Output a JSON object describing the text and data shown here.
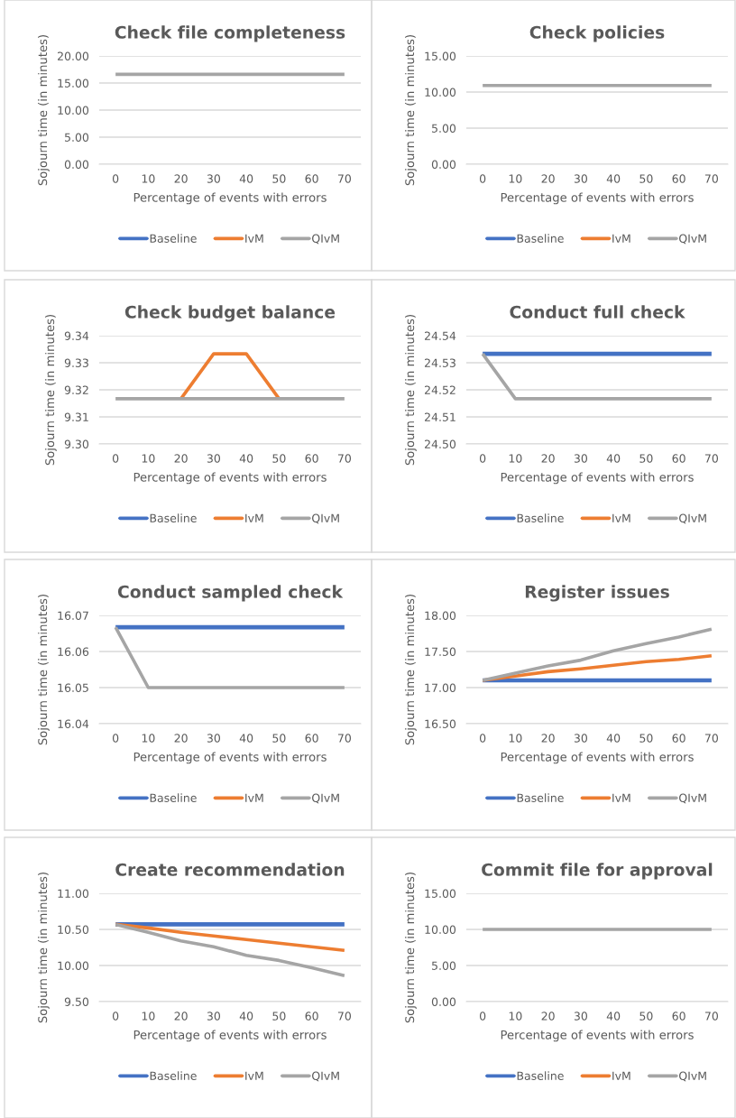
{
  "chart_data": [
    {
      "type": "line",
      "title": "Check file completeness",
      "xlabel": "Percentage of events with errors",
      "ylabel": "Sojourn time (in minutes)",
      "categories": [
        "0",
        "10",
        "20",
        "30",
        "40",
        "50",
        "60",
        "70"
      ],
      "series": [
        {
          "name": "Baseline",
          "color": "#4472c4",
          "values": [
            null,
            null,
            null,
            null,
            null,
            null,
            null,
            null
          ]
        },
        {
          "name": "IvM",
          "color": "#ed7d31",
          "values": [
            null,
            null,
            null,
            null,
            null,
            null,
            null,
            null
          ]
        },
        {
          "name": "QIvM",
          "color": "#a5a5a5",
          "values": [
            16.6,
            16.6,
            16.6,
            16.6,
            16.6,
            16.6,
            16.6,
            16.6
          ]
        }
      ],
      "ylim": [
        0,
        20
      ],
      "yticks": [
        {
          "value": 0,
          "label": "0.00"
        },
        {
          "value": 5,
          "label": "5.00"
        },
        {
          "value": 10,
          "label": "10.00"
        },
        {
          "value": 15,
          "label": "15.00"
        },
        {
          "value": 20,
          "label": "20.00"
        }
      ],
      "grid": "y",
      "legend": "bottom"
    },
    {
      "type": "line",
      "title": "Check policies",
      "xlabel": "Percentage of events with errors",
      "ylabel": "Sojourn time (in minutes)",
      "categories": [
        "0",
        "10",
        "20",
        "30",
        "40",
        "50",
        "60",
        "70"
      ],
      "series": [
        {
          "name": "Baseline",
          "color": "#4472c4",
          "values": [
            null,
            null,
            null,
            null,
            null,
            null,
            null,
            null
          ]
        },
        {
          "name": "IvM",
          "color": "#ed7d31",
          "values": [
            null,
            null,
            null,
            null,
            null,
            null,
            null,
            null
          ]
        },
        {
          "name": "QIvM",
          "color": "#a5a5a5",
          "values": [
            10.9,
            10.9,
            10.9,
            10.9,
            10.9,
            10.9,
            10.9,
            10.9
          ]
        }
      ],
      "ylim": [
        0,
        15
      ],
      "yticks": [
        {
          "value": 0,
          "label": "0.00"
        },
        {
          "value": 5,
          "label": "5.00"
        },
        {
          "value": 10,
          "label": "10.00"
        },
        {
          "value": 15,
          "label": "15.00"
        }
      ],
      "grid": "y",
      "legend": "bottom"
    },
    {
      "type": "line",
      "title": "Check budget balance",
      "xlabel": "Percentage of events with errors",
      "ylabel": "Sojourn time (in minutes)",
      "categories": [
        "0",
        "10",
        "20",
        "30",
        "40",
        "50",
        "60",
        "70"
      ],
      "series": [
        {
          "name": "Baseline",
          "color": "#4472c4",
          "values": [
            null,
            null,
            null,
            null,
            null,
            null,
            null,
            null
          ]
        },
        {
          "name": "IvM",
          "color": "#ed7d31",
          "values": [
            null,
            null,
            9.3167,
            9.3333,
            9.3333,
            9.3167,
            null,
            null
          ]
        },
        {
          "name": "QIvM",
          "color": "#a5a5a5",
          "values": [
            9.3167,
            9.3167,
            9.3167,
            9.3167,
            9.3167,
            9.3167,
            9.3167,
            9.3167
          ]
        }
      ],
      "ylim": [
        9.3,
        9.34
      ],
      "yticks": [
        {
          "value": 9.3,
          "label": "9.30"
        },
        {
          "value": 9.31,
          "label": "9.31"
        },
        {
          "value": 9.32,
          "label": "9.32"
        },
        {
          "value": 9.33,
          "label": "9.33"
        },
        {
          "value": 9.34,
          "label": "9.34"
        }
      ],
      "grid": "y",
      "legend": "bottom"
    },
    {
      "type": "line",
      "title": "Conduct full check",
      "xlabel": "Percentage of events with errors",
      "ylabel": "Sojourn time (in minutes)",
      "categories": [
        "0",
        "10",
        "20",
        "30",
        "40",
        "50",
        "60",
        "70"
      ],
      "series": [
        {
          "name": "Baseline",
          "color": "#4472c4",
          "values": [
            24.5333,
            24.5333,
            24.5333,
            24.5333,
            24.5333,
            24.5333,
            24.5333,
            24.5333
          ]
        },
        {
          "name": "IvM",
          "color": "#ed7d31",
          "values": [
            null,
            null,
            null,
            null,
            null,
            null,
            null,
            null
          ]
        },
        {
          "name": "QIvM",
          "color": "#a5a5a5",
          "values": [
            24.5333,
            24.5167,
            24.5167,
            24.5167,
            24.5167,
            24.5167,
            24.5167,
            24.5167
          ]
        }
      ],
      "ylim": [
        24.5,
        24.54
      ],
      "yticks": [
        {
          "value": 24.5,
          "label": "24.50"
        },
        {
          "value": 24.51,
          "label": "24.51"
        },
        {
          "value": 24.52,
          "label": "24.52"
        },
        {
          "value": 24.53,
          "label": "24.53"
        },
        {
          "value": 24.54,
          "label": "24.54"
        }
      ],
      "grid": "y",
      "legend": "bottom"
    },
    {
      "type": "line",
      "title": "Conduct sampled check",
      "xlabel": "Percentage of events with errors",
      "ylabel": "Sojourn time (in minutes)",
      "categories": [
        "0",
        "10",
        "20",
        "30",
        "40",
        "50",
        "60",
        "70"
      ],
      "series": [
        {
          "name": "Baseline",
          "color": "#4472c4",
          "values": [
            16.0667,
            16.0667,
            16.0667,
            16.0667,
            16.0667,
            16.0667,
            16.0667,
            16.0667
          ]
        },
        {
          "name": "IvM",
          "color": "#ed7d31",
          "values": [
            null,
            null,
            null,
            null,
            null,
            null,
            null,
            null
          ]
        },
        {
          "name": "QIvM",
          "color": "#a5a5a5",
          "values": [
            16.0667,
            16.05,
            16.05,
            16.05,
            16.05,
            16.05,
            16.05,
            16.05
          ]
        }
      ],
      "ylim": [
        16.04,
        16.07
      ],
      "yticks": [
        {
          "value": 16.04,
          "label": "16.04"
        },
        {
          "value": 16.05,
          "label": "16.05"
        },
        {
          "value": 16.06,
          "label": "16.06"
        },
        {
          "value": 16.07,
          "label": "16.07"
        }
      ],
      "grid": "y",
      "legend": "bottom"
    },
    {
      "type": "line",
      "title": "Register issues",
      "xlabel": "Percentage of events with errors",
      "ylabel": "Sojourn time (in minutes)",
      "categories": [
        "0",
        "10",
        "20",
        "30",
        "40",
        "50",
        "60",
        "70"
      ],
      "series": [
        {
          "name": "Baseline",
          "color": "#4472c4",
          "values": [
            17.1,
            17.1,
            17.1,
            17.1,
            17.1,
            17.1,
            17.1,
            17.1
          ]
        },
        {
          "name": "IvM",
          "color": "#ed7d31",
          "values": [
            17.1,
            17.16,
            17.22,
            17.26,
            17.31,
            17.36,
            17.39,
            17.44
          ]
        },
        {
          "name": "QIvM",
          "color": "#a5a5a5",
          "values": [
            17.1,
            17.2,
            17.3,
            17.38,
            17.51,
            17.61,
            17.7,
            17.81
          ]
        }
      ],
      "ylim": [
        16.5,
        18
      ],
      "yticks": [
        {
          "value": 16.5,
          "label": "16.50"
        },
        {
          "value": 17,
          "label": "17.00"
        },
        {
          "value": 17.5,
          "label": "17.50"
        },
        {
          "value": 18,
          "label": "18.00"
        }
      ],
      "grid": "y",
      "legend": "bottom"
    },
    {
      "type": "line",
      "title": "Create recommendation",
      "xlabel": "Percentage of events with errors",
      "ylabel": "Sojourn time (in minutes)",
      "categories": [
        "0",
        "10",
        "20",
        "30",
        "40",
        "50",
        "60",
        "70"
      ],
      "series": [
        {
          "name": "Baseline",
          "color": "#4472c4",
          "values": [
            10.57,
            10.57,
            10.57,
            10.57,
            10.57,
            10.57,
            10.57,
            10.57
          ]
        },
        {
          "name": "IvM",
          "color": "#ed7d31",
          "values": [
            10.57,
            10.52,
            10.46,
            10.41,
            10.36,
            10.31,
            10.26,
            10.21
          ]
        },
        {
          "name": "QIvM",
          "color": "#a5a5a5",
          "values": [
            10.57,
            10.46,
            10.34,
            10.26,
            10.14,
            10.07,
            9.97,
            9.86
          ]
        }
      ],
      "ylim": [
        9.5,
        11
      ],
      "yticks": [
        {
          "value": 9.5,
          "label": "9.50"
        },
        {
          "value": 10,
          "label": "10.00"
        },
        {
          "value": 10.5,
          "label": "10.50"
        },
        {
          "value": 11,
          "label": "11.00"
        }
      ],
      "grid": "y",
      "legend": "bottom"
    },
    {
      "type": "line",
      "title": "Commit file for approval",
      "xlabel": "Percentage of events with errors",
      "ylabel": "Sojourn time (in minutes)",
      "categories": [
        "0",
        "10",
        "20",
        "30",
        "40",
        "50",
        "60",
        "70"
      ],
      "series": [
        {
          "name": "Baseline",
          "color": "#4472c4",
          "values": [
            null,
            null,
            null,
            null,
            null,
            null,
            null,
            null
          ]
        },
        {
          "name": "IvM",
          "color": "#ed7d31",
          "values": [
            null,
            null,
            null,
            null,
            null,
            null,
            null,
            null
          ]
        },
        {
          "name": "QIvM",
          "color": "#a5a5a5",
          "values": [
            10.0,
            10.0,
            10.0,
            10.0,
            10.0,
            10.0,
            10.0,
            10.0
          ]
        }
      ],
      "ylim": [
        0,
        15
      ],
      "yticks": [
        {
          "value": 0,
          "label": "0.00"
        },
        {
          "value": 5,
          "label": "5.00"
        },
        {
          "value": 10,
          "label": "10.00"
        },
        {
          "value": 15,
          "label": "15.00"
        }
      ],
      "grid": "y",
      "legend": "bottom"
    }
  ]
}
